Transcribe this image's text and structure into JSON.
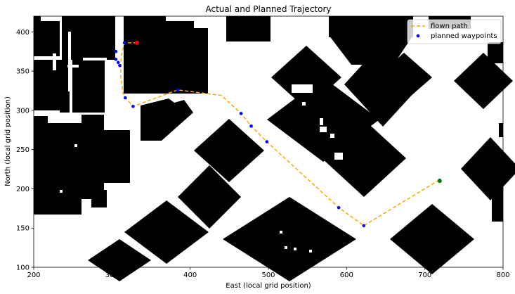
{
  "chart_data": {
    "type": "line",
    "title": "Actual and Planned Trajectory",
    "xlabel": "East (local grid position)",
    "ylabel": "North (local grid position)",
    "xlim": [
      200,
      800
    ],
    "ylim": [
      100,
      420
    ],
    "xticks": [
      200,
      300,
      400,
      500,
      600,
      700,
      800
    ],
    "yticks": [
      100,
      150,
      200,
      250,
      300,
      350,
      400
    ],
    "grid": false,
    "legend_position": "upper right",
    "background_image": "occupancy-grid-obstacles",
    "colors": {
      "obstacle": "#000000",
      "free": "#ffffff",
      "flown_path": "#ffa500",
      "waypoints": "#0000ff",
      "start": "#ff0000",
      "goal": "#008000"
    },
    "legend": [
      {
        "label": "flown path",
        "style": "dashed-line",
        "color": "#ffa500"
      },
      {
        "label": "planned waypoints",
        "style": "point",
        "color": "#0000ff"
      }
    ],
    "series": [
      {
        "name": "flown path",
        "type": "line",
        "style": "dashed",
        "color": "#ffa500",
        "x": [
          332,
          316,
          312,
          311,
          314,
          318,
          327,
          384,
          440,
          465,
          478,
          498,
          590,
          622,
          718
        ],
        "y": [
          386,
          386,
          370,
          345,
          322,
          315,
          305,
          326,
          319,
          296,
          280,
          260,
          176,
          153,
          211
        ]
      },
      {
        "name": "planned waypoints",
        "type": "scatter",
        "color": "#0000ff",
        "x": [
          332,
          316,
          305,
          305,
          308,
          310,
          317,
          327,
          384,
          465,
          478,
          498,
          590,
          622,
          719
        ],
        "y": [
          386,
          386,
          375,
          365,
          361,
          357,
          316,
          305,
          326,
          296,
          280,
          260,
          176,
          153,
          211
        ]
      }
    ],
    "markers": [
      {
        "name": "start",
        "x": 332,
        "y": 386,
        "color": "#ff0000"
      },
      {
        "name": "goal",
        "x": 719,
        "y": 210,
        "color": "#008000"
      }
    ]
  }
}
